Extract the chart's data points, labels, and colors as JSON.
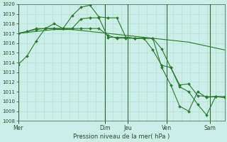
{
  "background_color": "#cceee8",
  "grid_color": "#aaddcc",
  "line_color": "#2a7a2a",
  "marker_color": "#2a7a2a",
  "title": "Pression niveau de la mer( hPa )",
  "ylim": [
    1008,
    1020
  ],
  "yticks": [
    1008,
    1009,
    1010,
    1011,
    1012,
    1013,
    1014,
    1015,
    1016,
    1017,
    1018,
    1019,
    1020
  ],
  "day_labels": [
    "Mer",
    "Dim",
    "Jeu",
    "Ven",
    "Sam"
  ],
  "day_positions": [
    0.0,
    0.42,
    0.53,
    0.72,
    0.93
  ],
  "vline_positions": [
    0.0,
    0.42,
    0.53,
    0.72,
    0.93
  ],
  "series": [
    [
      1013.8,
      1014.7,
      1016.2,
      1017.5,
      1018.0,
      1017.5,
      1018.8,
      1019.7,
      1019.9,
      1018.7,
      1018.6,
      1018.6,
      1016.6,
      1016.5,
      1016.5,
      1015.3,
      1013.7,
      1013.5,
      1011.5,
      1011.0,
      1009.7,
      1008.6,
      1010.5,
      1010.4
    ],
    [
      1017.0,
      1017.1,
      1017.2,
      1017.3,
      1017.4,
      1017.4,
      1017.4,
      1017.3,
      1017.2,
      1017.1,
      1017.0,
      1016.9,
      1016.8,
      1016.7,
      1016.6,
      1016.5,
      1016.4,
      1016.3,
      1016.2,
      1016.1,
      1015.9,
      1015.7,
      1015.5,
      1015.3
    ],
    [
      1017.0,
      1017.2,
      1017.5,
      1017.5,
      1017.5,
      1017.5,
      1017.5,
      1018.5,
      1018.6,
      1018.6,
      1016.6,
      1016.6,
      1016.6,
      1016.5,
      1016.5,
      1016.5,
      1013.5,
      1011.7,
      1009.5,
      1009.0,
      1011.0,
      1010.4,
      1010.5,
      1010.5
    ],
    [
      1017.0,
      1017.2,
      1017.4,
      1017.5,
      1017.5,
      1017.5,
      1017.5,
      1017.5,
      1017.5,
      1017.5,
      1016.8,
      1016.5,
      1016.5,
      1016.5,
      1016.5,
      1016.5,
      1015.4,
      1013.5,
      1011.7,
      1011.8,
      1010.6,
      1010.5,
      1010.5,
      1010.4
    ]
  ]
}
